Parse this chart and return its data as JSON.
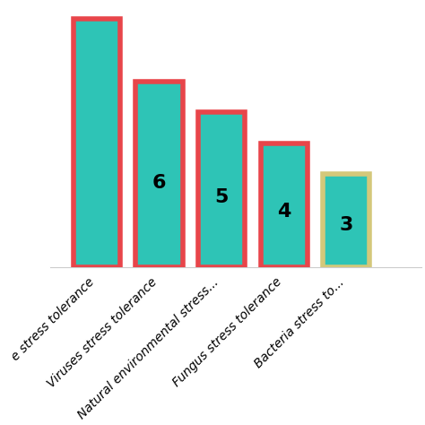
{
  "categories": [
    "e stress tolerance",
    "Viruses stress tolerance",
    "Natural environmental stress...",
    "Fungus stress tolerance",
    "Bacteria stress to..."
  ],
  "values": [
    8,
    6,
    5,
    4,
    3
  ],
  "bar_color": "#2EC4B6",
  "border_colors": [
    "#E8454A",
    "#E8454A",
    "#E8454A",
    "#E8454A",
    "#D4C87A"
  ],
  "labels": [
    null,
    "6",
    "5",
    "4",
    "3"
  ],
  "background_color": "#FFFFFF",
  "ylim": [
    0,
    8.5
  ],
  "grid_color": "#E5E5E5",
  "bar_width": 0.75,
  "label_fontsize": 16,
  "tick_fontsize": 10,
  "border_linewidth": 4.0,
  "xlim_min": -0.75,
  "xlim_max": 5.2
}
